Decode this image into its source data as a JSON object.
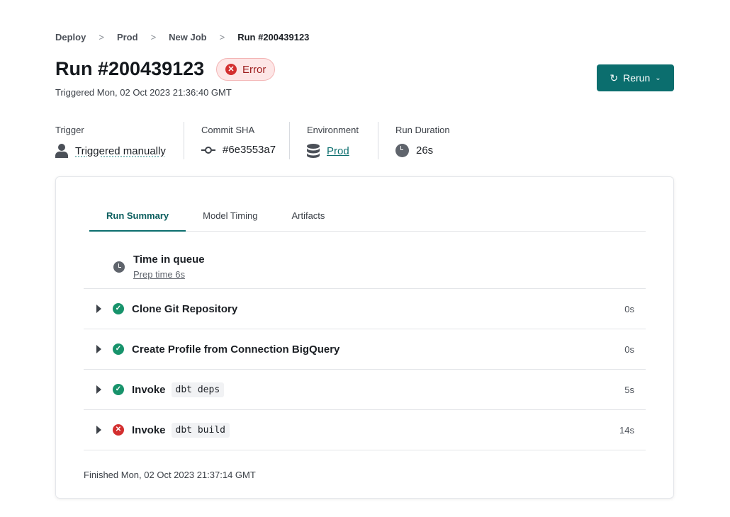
{
  "breadcrumb": [
    "Deploy",
    "Prod",
    "New Job",
    "Run #200439123"
  ],
  "title": "Run #200439123",
  "status": {
    "label": "Error",
    "color": "#d32f2f"
  },
  "triggered": "Triggered Mon, 02 Oct 2023 21:36:40 GMT",
  "rerun_label": "Rerun",
  "meta": {
    "trigger": {
      "label": "Trigger",
      "value": "Triggered manually",
      "icon": "user-icon"
    },
    "commit": {
      "label": "Commit SHA",
      "value": "#6e3553a7",
      "icon": "commit-icon"
    },
    "environment": {
      "label": "Environment",
      "value": "Prod",
      "icon": "database-icon"
    },
    "duration": {
      "label": "Run Duration",
      "value": "26s",
      "icon": "clock-icon"
    }
  },
  "tabs": [
    "Run Summary",
    "Model Timing",
    "Artifacts"
  ],
  "queue": {
    "title": "Time in queue",
    "prep": "Prep time 6s"
  },
  "steps": [
    {
      "name": "Clone Git Repository",
      "code": "",
      "duration": "0s",
      "status": "success"
    },
    {
      "name": "Create Profile from Connection BigQuery",
      "code": "",
      "duration": "0s",
      "status": "success"
    },
    {
      "name": "Invoke",
      "code": "dbt deps",
      "duration": "5s",
      "status": "success"
    },
    {
      "name": "Invoke",
      "code": "dbt build",
      "duration": "14s",
      "status": "error"
    }
  ],
  "finished": "Finished Mon, 02 Oct 2023 21:37:14 GMT",
  "accent": "#0b6e6e"
}
